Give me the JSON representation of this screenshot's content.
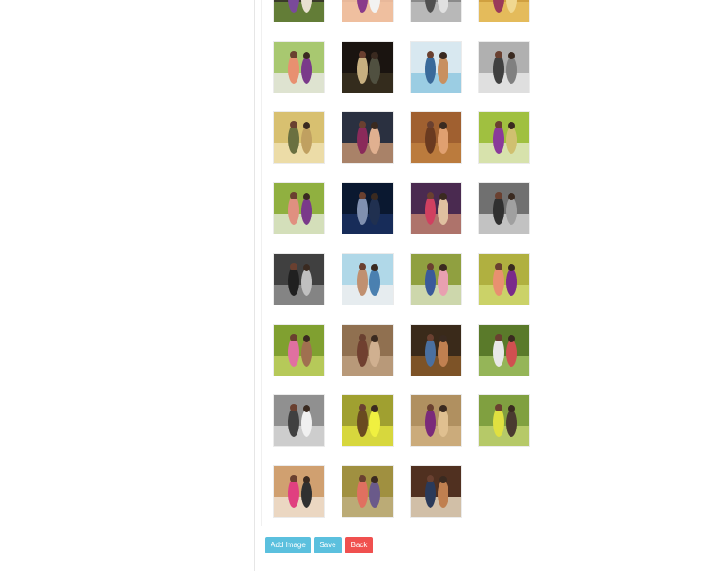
{
  "gallery": {
    "images": [
      {
        "icon": "photo-icon",
        "bg": "#3a3a2a",
        "fg": "#6b8a3a",
        "c1": "#7a4a9a",
        "c2": "#e8e0d0"
      },
      {
        "icon": "photo-icon",
        "bg": "#e8b89a",
        "fg": "#f0c0a0",
        "c1": "#8a3a8a",
        "c2": "#f2f2f2"
      },
      {
        "icon": "photo-icon",
        "bg": "#8a8a8a",
        "fg": "#c0c0c0",
        "c1": "#505050",
        "c2": "#e0e0e0"
      },
      {
        "icon": "photo-icon",
        "bg": "#d0a040",
        "fg": "#e8c060",
        "c1": "#9a3a5a",
        "c2": "#f0d890"
      },
      {
        "icon": "photo-icon",
        "bg": "#a8c870",
        "fg": "#e8e8e0",
        "c1": "#e89070",
        "c2": "#7a3a8a"
      },
      {
        "icon": "photo-icon",
        "bg": "#1a1410",
        "fg": "#3a3020",
        "c1": "#c8b080",
        "c2": "#505040"
      },
      {
        "icon": "photo-icon",
        "bg": "#d8e8f0",
        "fg": "#90c8e0",
        "c1": "#3a6a9a",
        "c2": "#c89060"
      },
      {
        "icon": "photo-icon",
        "bg": "#b0b0b0",
        "fg": "#e8e8e8",
        "c1": "#404040",
        "c2": "#808080"
      },
      {
        "icon": "photo-icon",
        "bg": "#d8c070",
        "fg": "#f0e0b0",
        "c1": "#6a7040",
        "c2": "#c0a060"
      },
      {
        "icon": "photo-icon",
        "bg": "#2a3040",
        "fg": "#c09070",
        "c1": "#8a2a5a",
        "c2": "#e0b090"
      },
      {
        "icon": "photo-icon",
        "bg": "#a06030",
        "fg": "#c08040",
        "c1": "#6a3a20",
        "c2": "#e0a070"
      },
      {
        "icon": "photo-icon",
        "bg": "#a0c040",
        "fg": "#e0e8c0",
        "c1": "#8a3a9a",
        "c2": "#d0c070"
      },
      {
        "icon": "photo-icon",
        "bg": "#90b040",
        "fg": "#e0e8d0",
        "c1": "#e09080",
        "c2": "#7a3a8a"
      },
      {
        "icon": "photo-icon",
        "bg": "#0a1830",
        "fg": "#1a3060",
        "c1": "#8090b0",
        "c2": "#203050"
      },
      {
        "icon": "photo-icon",
        "bg": "#4a2a50",
        "fg": "#c08070",
        "c1": "#d04060",
        "c2": "#e0c0a0"
      },
      {
        "icon": "photo-icon",
        "bg": "#707070",
        "fg": "#d0d0d0",
        "c1": "#303030",
        "c2": "#a0a0a0"
      },
      {
        "icon": "photo-icon",
        "bg": "#404040",
        "fg": "#909090",
        "c1": "#202020",
        "c2": "#c0c0c0"
      },
      {
        "icon": "photo-icon",
        "bg": "#b0d8e8",
        "fg": "#f0f0f0",
        "c1": "#c09070",
        "c2": "#4a80b0"
      },
      {
        "icon": "photo-icon",
        "bg": "#90a040",
        "fg": "#d8e0c0",
        "c1": "#3a5a9a",
        "c2": "#e8a0b0"
      },
      {
        "icon": "photo-icon",
        "bg": "#b0b040",
        "fg": "#d0d870",
        "c1": "#e89070",
        "c2": "#7a2a8a"
      },
      {
        "icon": "photo-icon",
        "bg": "#80a030",
        "fg": "#c0d060",
        "c1": "#e070a0",
        "c2": "#a07050"
      },
      {
        "icon": "photo-icon",
        "bg": "#907050",
        "fg": "#c0a080",
        "c1": "#704030",
        "c2": "#d0b090"
      },
      {
        "icon": "photo-icon",
        "bg": "#3a2a1a",
        "fg": "#8a5a2a",
        "c1": "#4a70a0",
        "c2": "#c08050"
      },
      {
        "icon": "photo-icon",
        "bg": "#5a7a2a",
        "fg": "#a0c060",
        "c1": "#e8e8e8",
        "c2": "#d05050"
      },
      {
        "icon": "photo-icon",
        "bg": "#909090",
        "fg": "#d8d8d8",
        "c1": "#404040",
        "c2": "#f0f0f0"
      },
      {
        "icon": "photo-icon",
        "bg": "#a0a030",
        "fg": "#e0e040",
        "c1": "#6a4a20",
        "c2": "#f0f040"
      },
      {
        "icon": "photo-icon",
        "bg": "#b09060",
        "fg": "#d0b080",
        "c1": "#7a2a7a",
        "c2": "#e0c090"
      },
      {
        "icon": "photo-icon",
        "bg": "#80a040",
        "fg": "#c0d070",
        "c1": "#e0e040",
        "c2": "#4a3a30"
      },
      {
        "icon": "photo-icon",
        "bg": "#d0a070",
        "fg": "#f0e0d0",
        "c1": "#e04080",
        "c2": "#303030"
      },
      {
        "icon": "photo-icon",
        "bg": "#a09040",
        "fg": "#c0b080",
        "c1": "#e07060",
        "c2": "#6a5a8a"
      },
      {
        "icon": "photo-icon",
        "bg": "#503020",
        "fg": "#e8d8c0",
        "c1": "#2a3a5a",
        "c2": "#c08050"
      }
    ]
  },
  "actions": {
    "add_image": "Add Image",
    "save": "Save",
    "back": "Back"
  }
}
